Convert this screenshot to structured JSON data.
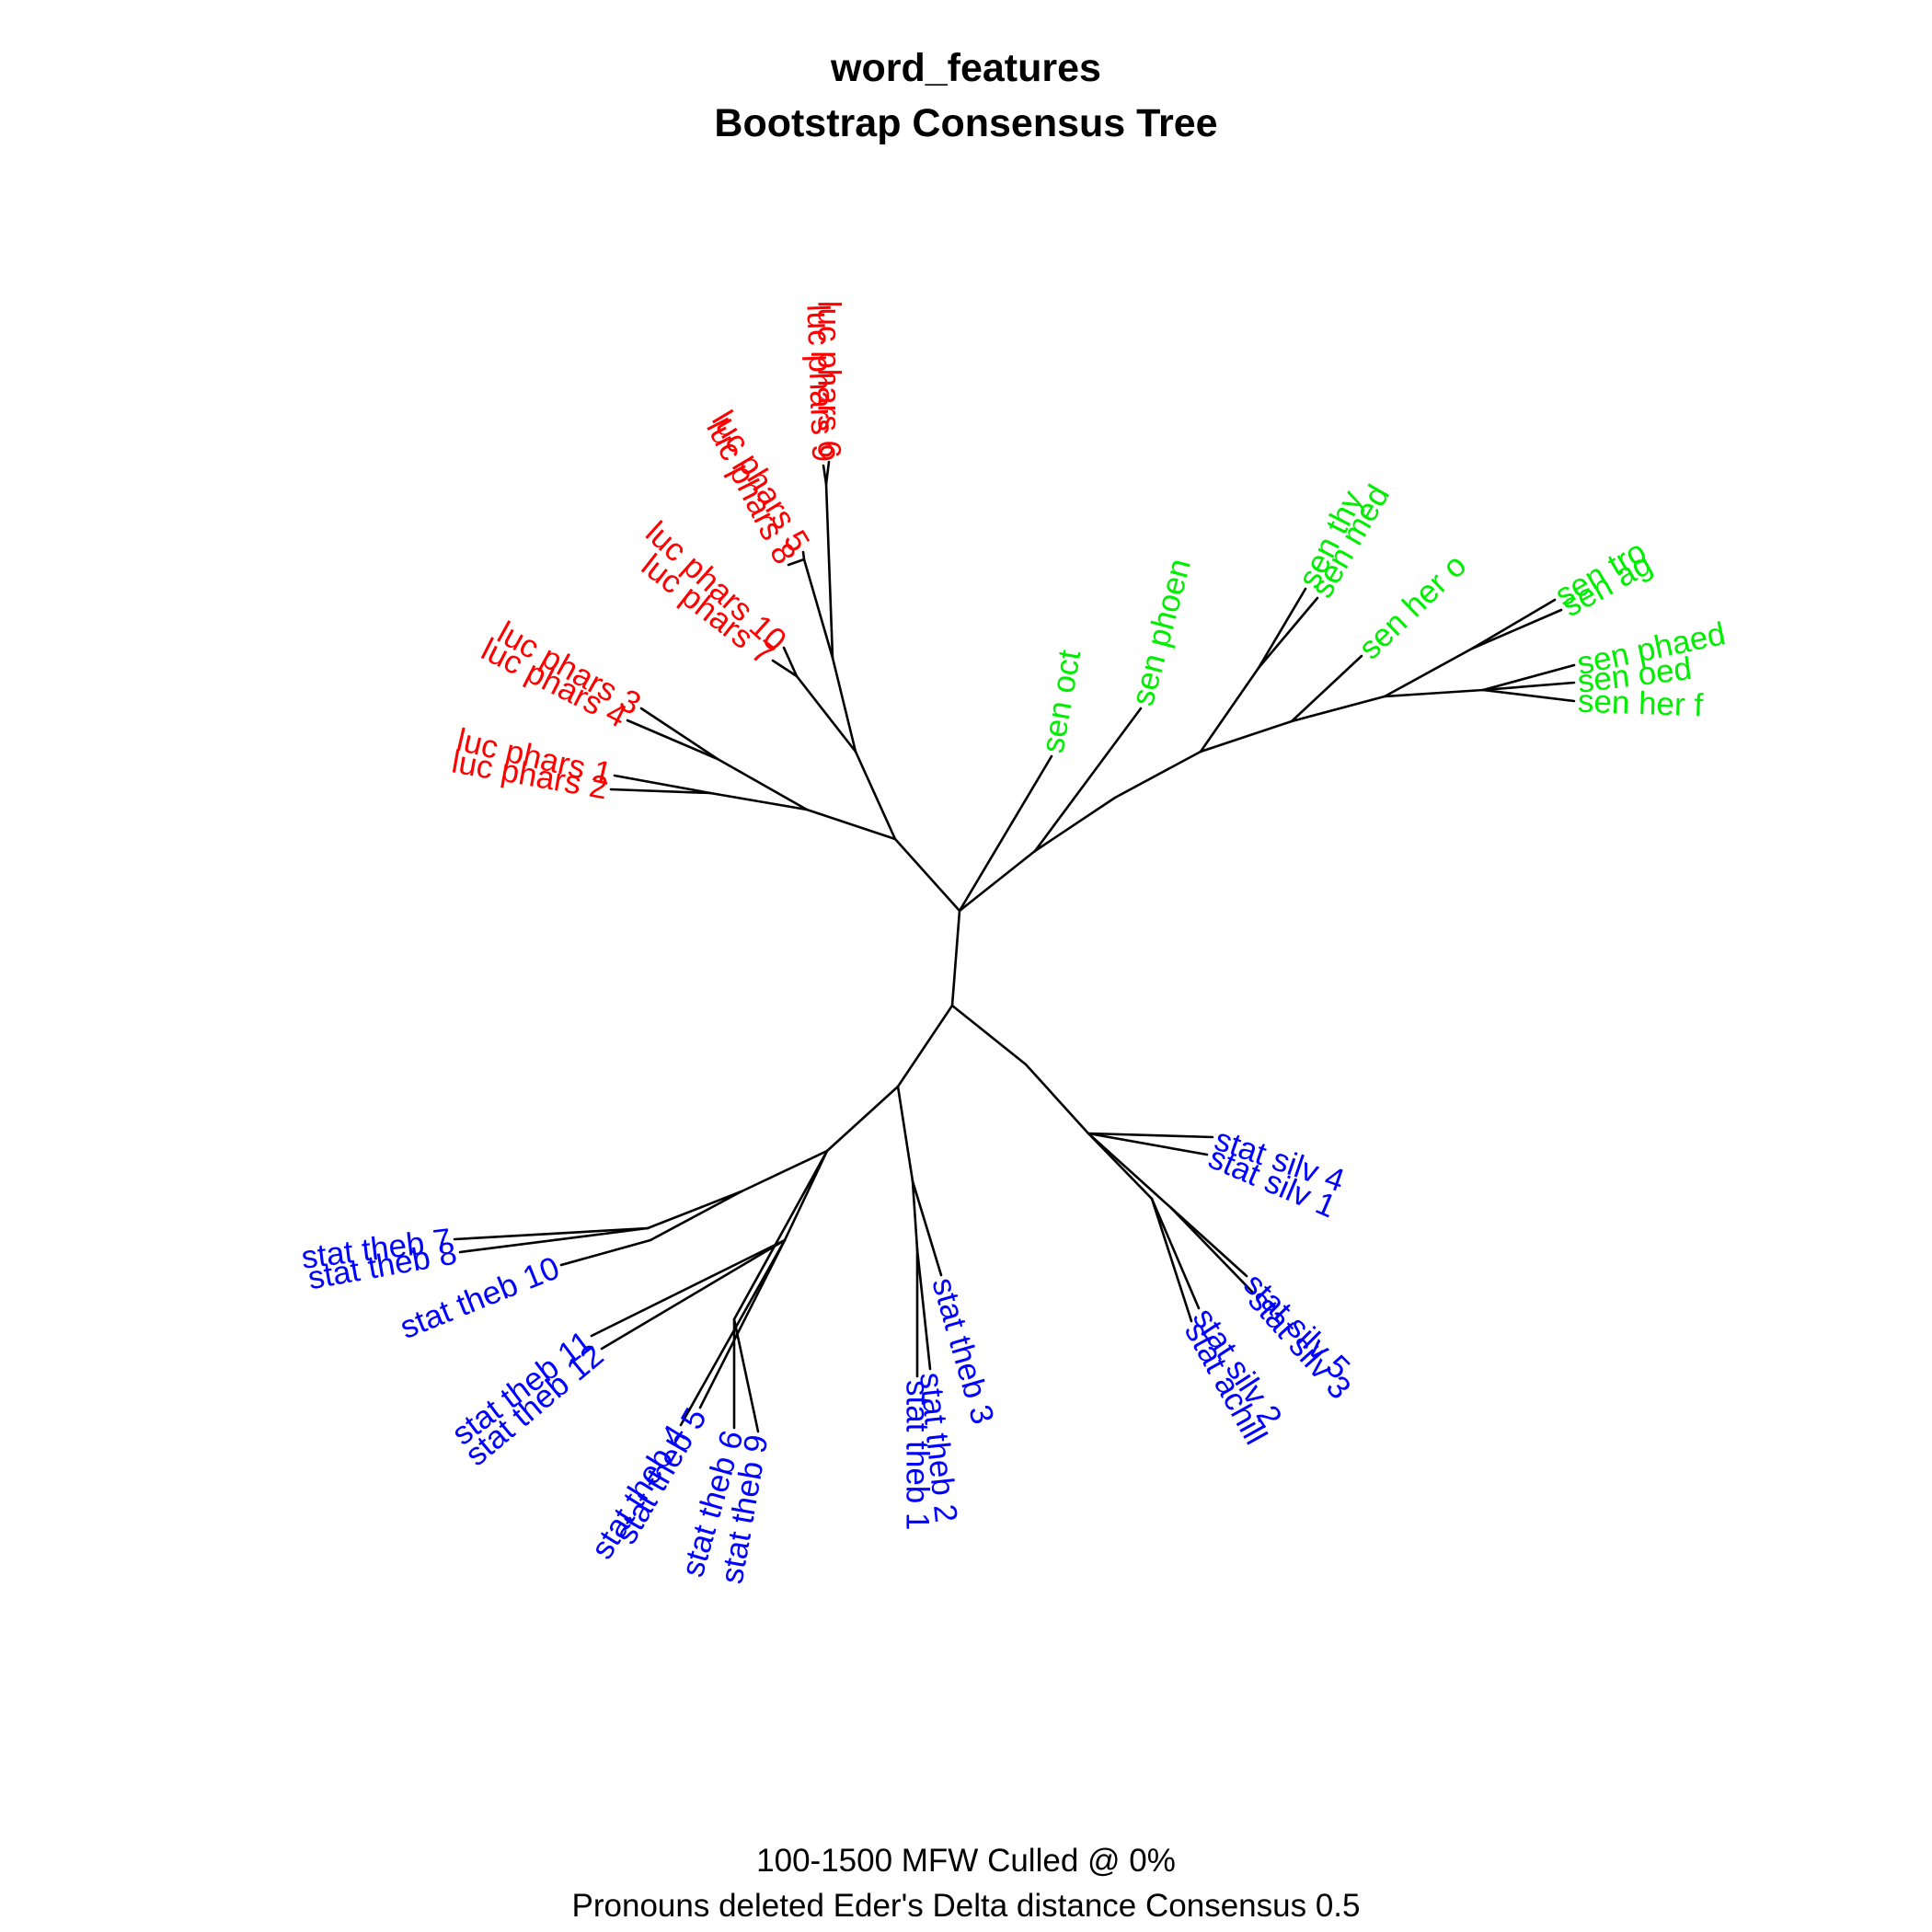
{
  "figure": {
    "title": "word_features",
    "subtitle": "Bootstrap Consensus Tree",
    "caption_line1": "100-1500 MFW  Culled @ 0%",
    "caption_line2": "Pronouns deleted Eder's Delta distance Consensus 0.5"
  },
  "colors": {
    "luc": "#ff0000",
    "sen": "#00ee00",
    "stat": "#0000ff",
    "branch": "#000000"
  },
  "tree": {
    "type": "unrooted-consensus-tree",
    "groups": {
      "luc": [
        "luc phars 1",
        "luc phars 2",
        "luc phars 3",
        "luc phars 4",
        "luc phars 5",
        "luc phars 6",
        "luc phars 7",
        "luc phars 8",
        "luc phars 9",
        "luc phars 10"
      ],
      "sen": [
        "sen oct",
        "sen phoen",
        "sen thy",
        "sen med",
        "sen her o",
        "sen tro",
        "sen ag",
        "sen phaed",
        "sen oed",
        "sen her f"
      ],
      "stat": [
        "stat silv 1",
        "stat silv 2",
        "stat silv 3",
        "stat silv 4",
        "stat silv 5",
        "stat achill",
        "stat theb 1",
        "stat theb 2",
        "stat theb 3",
        "stat theb 4",
        "stat theb 5",
        "stat theb 6",
        "stat theb 7",
        "stat theb 8",
        "stat theb 9",
        "stat theb 10",
        "stat theb 11",
        "stat theb 12"
      ]
    }
  }
}
